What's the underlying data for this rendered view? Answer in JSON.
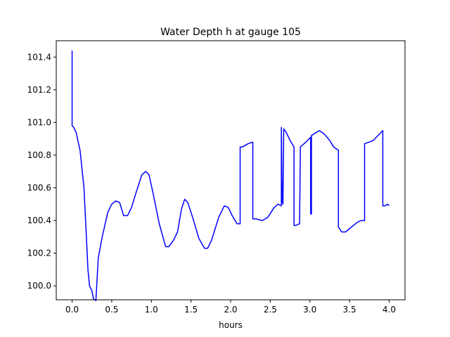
{
  "chart_data": {
    "type": "line",
    "title": "Water Depth h at gauge 105",
    "xlabel": "hours",
    "ylabel": "",
    "xlim": [
      -0.2,
      4.2
    ],
    "ylim": [
      99.915,
      101.5
    ],
    "x_ticks": [
      0.0,
      0.5,
      1.0,
      1.5,
      2.0,
      2.5,
      3.0,
      3.5,
      4.0
    ],
    "x_tick_labels": [
      "0.0",
      "0.5",
      "1.0",
      "1.5",
      "2.0",
      "2.5",
      "3.0",
      "3.5",
      "4.0"
    ],
    "y_ticks": [
      100.0,
      100.2,
      100.4,
      100.6,
      100.8,
      101.0,
      101.2,
      101.4
    ],
    "y_tick_labels": [
      "100.0",
      "100.2",
      "100.4",
      "100.6",
      "100.8",
      "101.0",
      "101.2",
      "101.4"
    ],
    "grid": false,
    "legend": "none",
    "series": [
      {
        "color": "#0000ff",
        "x": [
          0.0,
          0.0,
          0.02,
          0.05,
          0.1,
          0.15,
          0.18,
          0.2,
          0.22,
          0.25,
          0.27,
          0.3,
          0.33,
          0.38,
          0.45,
          0.5,
          0.55,
          0.6,
          0.65,
          0.7,
          0.75,
          0.8,
          0.88,
          0.93,
          0.97,
          1.02,
          1.1,
          1.18,
          1.22,
          1.28,
          1.33,
          1.38,
          1.42,
          1.46,
          1.52,
          1.6,
          1.67,
          1.71,
          1.76,
          1.85,
          1.92,
          1.97,
          2.02,
          2.08,
          2.12,
          2.12,
          2.15,
          2.22,
          2.28,
          2.28,
          2.32,
          2.4,
          2.47,
          2.55,
          2.6,
          2.64,
          2.64,
          2.65,
          2.66,
          2.67,
          2.67,
          2.7,
          2.75,
          2.8,
          2.8,
          2.82,
          2.87,
          2.88,
          2.88,
          2.95,
          3.01,
          3.01,
          3.02,
          3.02,
          3.05,
          3.12,
          3.18,
          3.25,
          3.3,
          3.36,
          3.36,
          3.4,
          3.45,
          3.5,
          3.55,
          3.6,
          3.65,
          3.69,
          3.69,
          3.75,
          3.8,
          3.86,
          3.92,
          3.92,
          3.95,
          3.98,
          4.0
        ],
        "y": [
          101.44,
          100.98,
          100.97,
          100.94,
          100.83,
          100.6,
          100.3,
          100.1,
          100.0,
          99.97,
          99.92,
          99.91,
          100.17,
          100.3,
          100.45,
          100.5,
          100.52,
          100.51,
          100.43,
          100.43,
          100.48,
          100.56,
          100.68,
          100.7,
          100.68,
          100.57,
          100.38,
          100.24,
          100.24,
          100.28,
          100.33,
          100.47,
          100.53,
          100.51,
          100.42,
          100.29,
          100.23,
          100.23,
          100.28,
          100.42,
          100.49,
          100.48,
          100.43,
          100.38,
          100.38,
          100.85,
          100.85,
          100.87,
          100.88,
          100.41,
          100.41,
          100.4,
          100.42,
          100.48,
          100.5,
          100.49,
          100.97,
          100.52,
          100.5,
          100.96,
          100.96,
          100.94,
          100.89,
          100.85,
          100.37,
          100.37,
          100.38,
          100.85,
          100.85,
          100.88,
          100.91,
          100.44,
          100.44,
          100.92,
          100.93,
          100.95,
          100.93,
          100.89,
          100.85,
          100.83,
          100.36,
          100.33,
          100.33,
          100.35,
          100.37,
          100.39,
          100.4,
          100.4,
          100.87,
          100.88,
          100.89,
          100.92,
          100.95,
          100.49,
          100.49,
          100.5,
          100.49
        ]
      }
    ]
  }
}
